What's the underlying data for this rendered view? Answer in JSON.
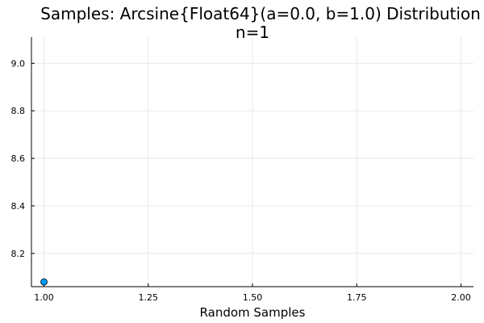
{
  "chart_data": {
    "type": "scatter",
    "title": "Samples: Arcsine{Float64}(a=0.0, b=1.0) Distribution",
    "subtitle": "n=1",
    "xlabel": "Random Samples",
    "ylabel": "",
    "xlim": [
      0.97,
      2.03
    ],
    "ylim": [
      8.06,
      9.11
    ],
    "xticks": [
      1.0,
      1.25,
      1.5,
      1.75,
      2.0
    ],
    "xtick_labels": [
      "1.00",
      "1.25",
      "1.50",
      "1.75",
      "2.00"
    ],
    "yticks": [
      8.2,
      8.4,
      8.6,
      8.8,
      9.0
    ],
    "ytick_labels": [
      "8.2",
      "8.4",
      "8.6",
      "8.8",
      "9.0"
    ],
    "grid": true,
    "legend": "none",
    "series": [
      {
        "color": "#009AFA",
        "points": [
          {
            "x": 1.0,
            "y": 8.08
          }
        ]
      }
    ]
  }
}
